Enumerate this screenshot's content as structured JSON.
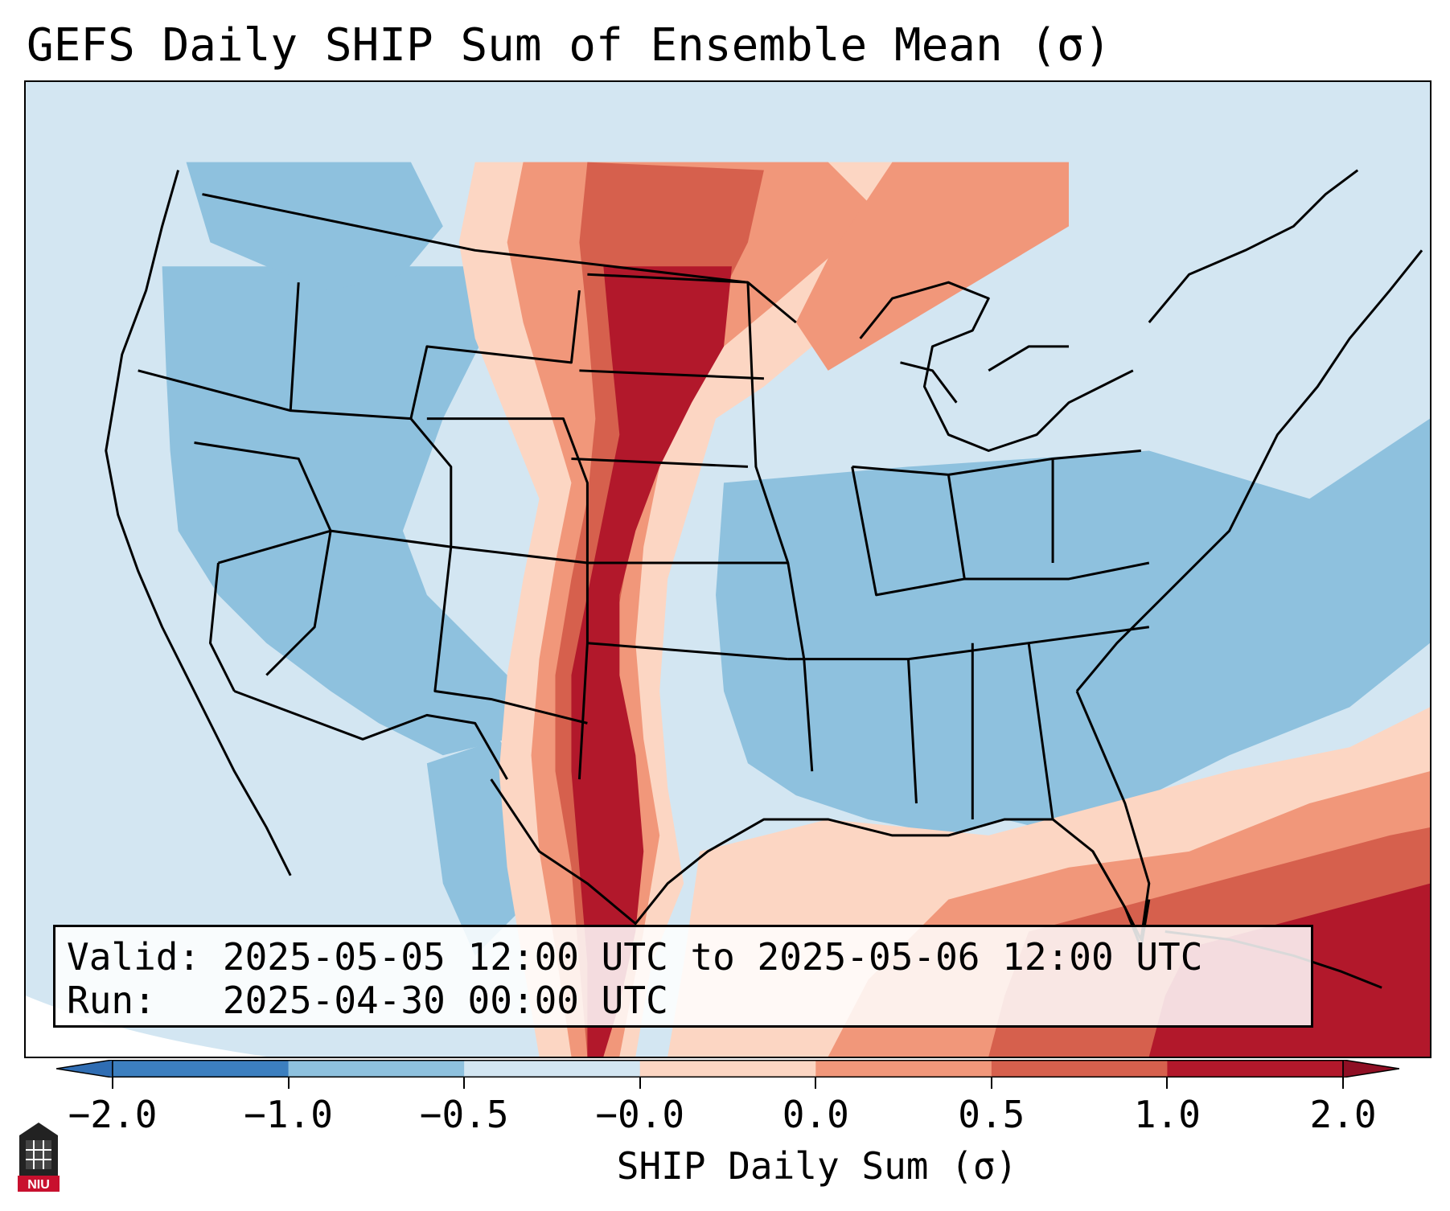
{
  "title": "GEFS Daily SHIP Sum of Ensemble Mean (σ)",
  "info": {
    "valid_label": "Valid:",
    "valid_value": "2025-05-05 12:00 UTC to 2025-05-06 12:00 UTC",
    "run_label": "Run:",
    "run_value": "2025-04-30 00:00 UTC"
  },
  "colorbar": {
    "label": "SHIP Daily Sum (σ)",
    "ticks": [
      "−2.0",
      "−1.0",
      "−0.5",
      "−0.0",
      "0.0",
      "0.5",
      "1.0",
      "2.0"
    ],
    "colors": [
      "#3c7fbf",
      "#8ec1de",
      "#d3e6f2",
      "#ffffff",
      "#fcd6c3",
      "#f1977a",
      "#d6604d",
      "#b2182b"
    ],
    "under_color": "#2f6db3",
    "over_color": "#8f0f24",
    "extend": "both"
  },
  "logo": {
    "text": "NIU",
    "color": "#c8102e"
  }
}
